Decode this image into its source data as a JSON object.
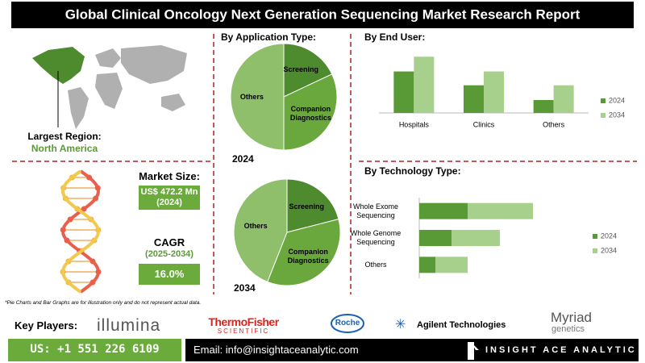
{
  "header": {
    "title": "Global Clinical Oncology Next Generation Sequencing Market Research Report"
  },
  "region": {
    "label": "Largest Region:",
    "value": "North America"
  },
  "market_size": {
    "label": "Market Size:",
    "value": "US$ 472.2 Mn (2024)"
  },
  "cagr": {
    "label": "CAGR",
    "period": "(2025-2034)",
    "value": "16.0%"
  },
  "footnote": "*Pie Charts and Bar Graphs are for illustration only and do not represent actual data.",
  "key_players": {
    "label": "Key Players:",
    "companies": [
      {
        "name": "illumina"
      },
      {
        "name": "ThermoFisher",
        "sub": "SCIENTIFIC"
      },
      {
        "name": "Roche"
      },
      {
        "name": "Agilent Technologies"
      },
      {
        "name": "Myriad",
        "sub": "genetics"
      }
    ]
  },
  "contact": {
    "phone": "US: +1 551 226 6109",
    "email": "Email: info@insightaceanalytic.com",
    "brand": "INSIGHT ACE ANALYTIC"
  },
  "chart_data": [
    {
      "type": "pie",
      "title": "By Application Type:",
      "subtitle": "2024",
      "categories": [
        "Screening",
        "Companion Diagnostics",
        "Others"
      ],
      "values": [
        18,
        32,
        50
      ],
      "colors": [
        "#4e8a2e",
        "#6aa83e",
        "#8fbf6a"
      ]
    },
    {
      "type": "pie",
      "subtitle": "2034",
      "categories": [
        "Screening",
        "Companion Diagnostics",
        "Others"
      ],
      "values": [
        21,
        35,
        44
      ],
      "colors": [
        "#4e8a2e",
        "#6aa83e",
        "#8fbf6a"
      ]
    },
    {
      "type": "bar",
      "title": "By End User:",
      "categories": [
        "Hospitals",
        "Clinics",
        "Others"
      ],
      "series": [
        {
          "name": "2024",
          "color": "#5a9a36",
          "values": [
            45,
            30,
            14
          ]
        },
        {
          "name": "2034",
          "color": "#a8d08d",
          "values": [
            61,
            45,
            30
          ]
        }
      ],
      "ylim": [
        0,
        70
      ],
      "legend": "right"
    },
    {
      "type": "hbar",
      "title": "By Technology Type:",
      "stacked": true,
      "categories": [
        "Whole Exome Sequencing",
        "Whole Genome Sequencing",
        "Others"
      ],
      "series": [
        {
          "name": "2024",
          "color": "#5a9a36",
          "values": [
            60,
            40,
            20
          ]
        },
        {
          "name": "2034",
          "color": "#a8d08d",
          "values": [
            81,
            60,
            40
          ]
        }
      ],
      "xlim": [
        0,
        200
      ],
      "legend": "right"
    }
  ]
}
